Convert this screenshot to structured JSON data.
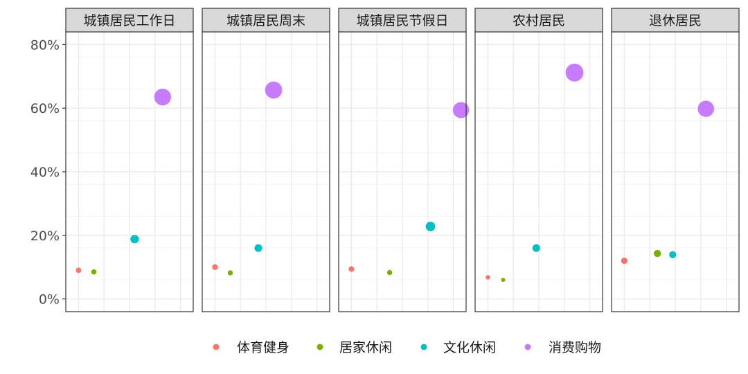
{
  "chart_data": {
    "type": "scatter",
    "facets": [
      {
        "label": "城镇居民工作日",
        "points": [
          {
            "series": "体育健身",
            "x": 1,
            "y": 9,
            "size": 9
          },
          {
            "series": "居家休闲",
            "x": 1.6,
            "y": 8.5,
            "size": 8.5
          },
          {
            "series": "文化休闲",
            "x": 3.2,
            "y": 18.8,
            "size": 18.8
          },
          {
            "series": "消费购物",
            "x": 4.3,
            "y": 63.5,
            "size": 63.5
          }
        ]
      },
      {
        "label": "城镇居民周末",
        "points": [
          {
            "series": "体育健身",
            "x": 1,
            "y": 10,
            "size": 10
          },
          {
            "series": "居家休闲",
            "x": 1.6,
            "y": 8.2,
            "size": 8.2
          },
          {
            "series": "文化休闲",
            "x": 2.7,
            "y": 16,
            "size": 16
          },
          {
            "series": "消费购物",
            "x": 3.3,
            "y": 65.7,
            "size": 65.7
          }
        ]
      },
      {
        "label": "城镇居民节假日",
        "points": [
          {
            "series": "体育健身",
            "x": 1,
            "y": 9.4,
            "size": 9.4
          },
          {
            "series": "居家休闲",
            "x": 2.5,
            "y": 8.3,
            "size": 8.3
          },
          {
            "series": "文化休闲",
            "x": 4.1,
            "y": 22.8,
            "size": 22.8
          },
          {
            "series": "消费购物",
            "x": 5.3,
            "y": 59.4,
            "size": 59.4
          }
        ]
      },
      {
        "label": "农村居民",
        "points": [
          {
            "series": "体育健身",
            "x": 1,
            "y": 6.8,
            "size": 6.8
          },
          {
            "series": "居家休闲",
            "x": 1.6,
            "y": 6,
            "size": 6
          },
          {
            "series": "文化休闲",
            "x": 2.9,
            "y": 16,
            "size": 16
          },
          {
            "series": "消费购物",
            "x": 4.4,
            "y": 71.2,
            "size": 71.2
          }
        ]
      },
      {
        "label": "退休居民",
        "points": [
          {
            "series": "体育健身",
            "x": 1,
            "y": 12,
            "size": 12
          },
          {
            "series": "居家休闲",
            "x": 2.3,
            "y": 14.3,
            "size": 14.3
          },
          {
            "series": "文化休闲",
            "x": 2.9,
            "y": 13.9,
            "size": 13.9
          },
          {
            "series": "消费购物",
            "x": 4.2,
            "y": 59.8,
            "size": 59.8
          }
        ]
      }
    ],
    "legend": {
      "position": "bottom",
      "entries": [
        {
          "name": "体育健身",
          "color": "#F8766D"
        },
        {
          "name": "居家休闲",
          "color": "#7CAE00"
        },
        {
          "name": "文化休闲",
          "color": "#00BFC4"
        },
        {
          "name": "消费购物",
          "color": "#C77CFF"
        }
      ]
    },
    "y_ticks": [
      "0%",
      "20%",
      "40%",
      "60%",
      "80%"
    ],
    "y_tick_values": [
      0,
      20,
      40,
      60,
      80
    ],
    "ylim": [
      -4,
      84
    ],
    "xlim": [
      0.5,
      5.5
    ],
    "size_range": [
      6,
      72
    ],
    "grid": true,
    "panel_border_color": "#333333",
    "strip_fill": "#d9d9d9",
    "grid_color": "#ebebeb"
  }
}
